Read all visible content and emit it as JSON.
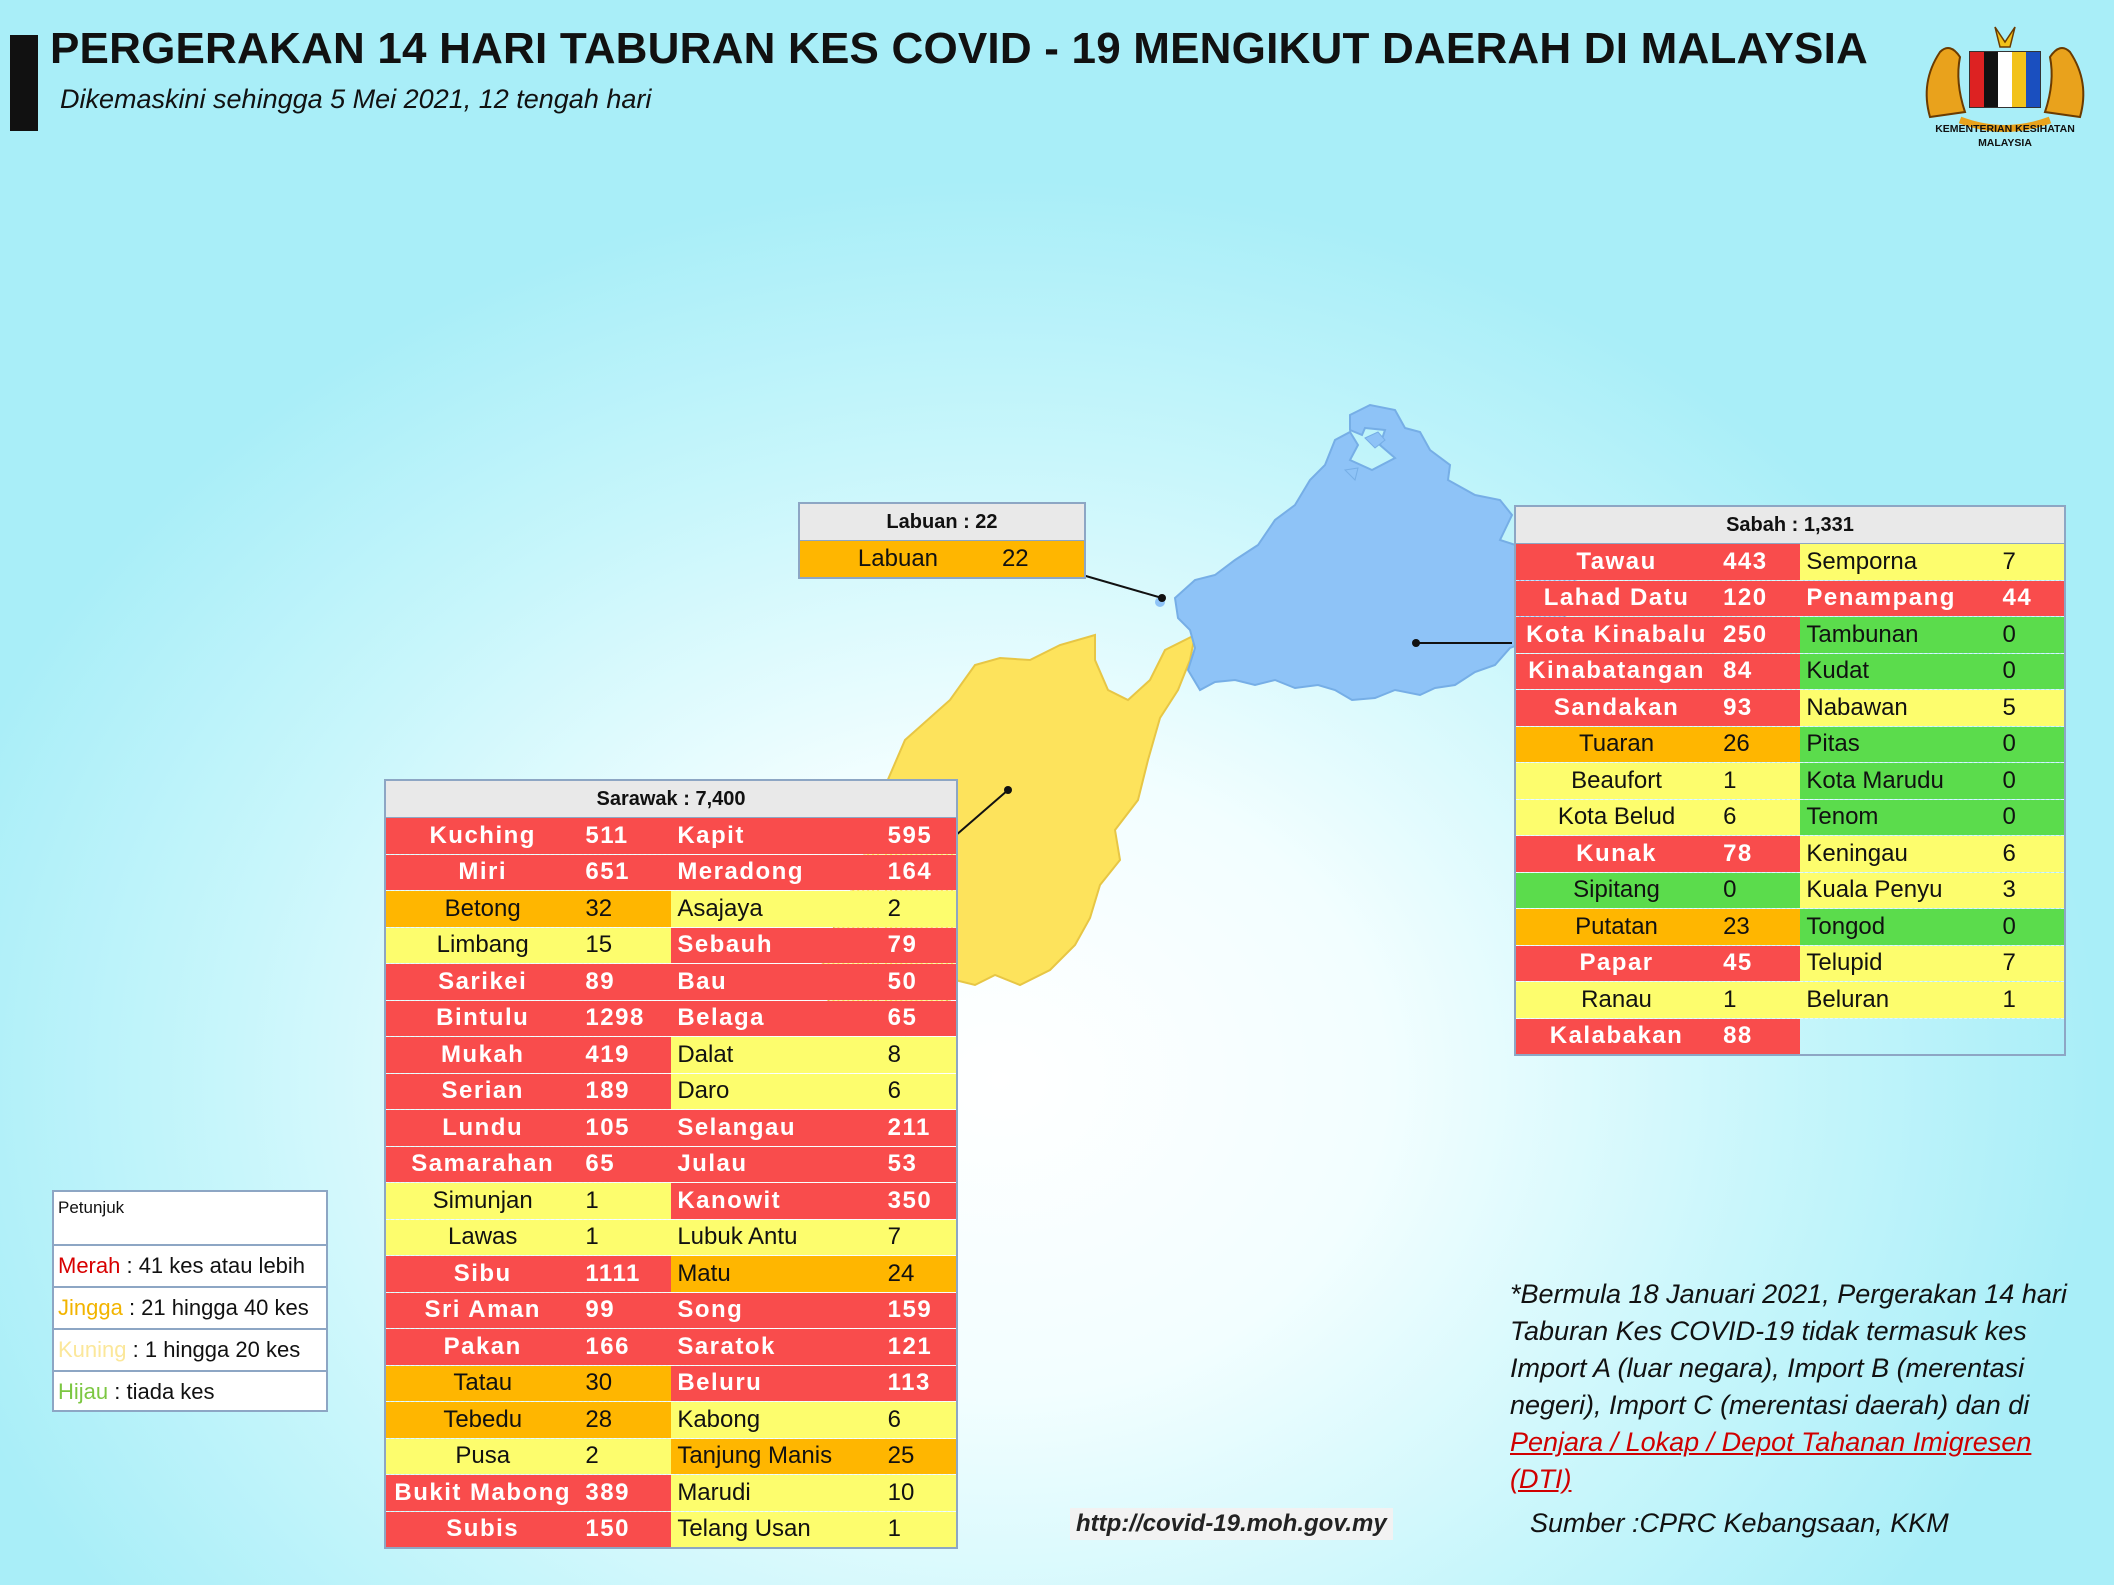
{
  "header": {
    "title": "PERGERAKAN 14 HARI TABURAN KES COVID - 19 MENGIKUT DAERAH DI MALAYSIA",
    "subtitle": "Dikemaskini sehingga 5 Mei 2021, 12 tengah hari",
    "logo_caption_1": "KEMENTERIAN KESIHATAN",
    "logo_caption_2": "MALAYSIA"
  },
  "colors": {
    "merah": "#f94c4c",
    "jingga": "#ffb600",
    "kuning": "#fdfd6d",
    "hijau": "#5bdc4c",
    "sabah_map": "#8ec3f7",
    "sarawak_map": "#fde35c"
  },
  "labuan": {
    "title": "Labuan : 22",
    "rows": [
      {
        "name": "Labuan",
        "value": "22",
        "level": "o"
      }
    ]
  },
  "sabah": {
    "title": "Sabah : 1,331",
    "rows": [
      [
        {
          "name": "Tawau",
          "value": "443",
          "level": "r"
        },
        {
          "name": "Semporna",
          "value": "7",
          "level": "y"
        }
      ],
      [
        {
          "name": "Lahad Datu",
          "value": "120",
          "level": "r"
        },
        {
          "name": "Penampang",
          "value": "44",
          "level": "r"
        }
      ],
      [
        {
          "name": "Kota Kinabalu",
          "value": "250",
          "level": "r"
        },
        {
          "name": "Tambunan",
          "value": "0",
          "level": "g"
        }
      ],
      [
        {
          "name": "Kinabatangan",
          "value": "84",
          "level": "r"
        },
        {
          "name": "Kudat",
          "value": "0",
          "level": "g"
        }
      ],
      [
        {
          "name": "Sandakan",
          "value": "93",
          "level": "r"
        },
        {
          "name": "Nabawan",
          "value": "5",
          "level": "y"
        }
      ],
      [
        {
          "name": "Tuaran",
          "value": "26",
          "level": "o"
        },
        {
          "name": "Pitas",
          "value": "0",
          "level": "g"
        }
      ],
      [
        {
          "name": "Beaufort",
          "value": "1",
          "level": "y"
        },
        {
          "name": "Kota Marudu",
          "value": "0",
          "level": "g"
        }
      ],
      [
        {
          "name": "Kota Belud",
          "value": "6",
          "level": "y"
        },
        {
          "name": "Tenom",
          "value": "0",
          "level": "g"
        }
      ],
      [
        {
          "name": "Kunak",
          "value": "78",
          "level": "r"
        },
        {
          "name": "Keningau",
          "value": "6",
          "level": "y"
        }
      ],
      [
        {
          "name": "Sipitang",
          "value": "0",
          "level": "g"
        },
        {
          "name": "Kuala Penyu",
          "value": "3",
          "level": "y"
        }
      ],
      [
        {
          "name": "Putatan",
          "value": "23",
          "level": "o"
        },
        {
          "name": "Tongod",
          "value": "0",
          "level": "g"
        }
      ],
      [
        {
          "name": "Papar",
          "value": "45",
          "level": "r"
        },
        {
          "name": "Telupid",
          "value": "7",
          "level": "y"
        }
      ],
      [
        {
          "name": "Ranau",
          "value": "1",
          "level": "y"
        },
        {
          "name": "Beluran",
          "value": "1",
          "level": "y"
        }
      ],
      [
        {
          "name": "Kalabakan",
          "value": "88",
          "level": "r"
        },
        {
          "name": "",
          "value": "",
          "level": "e"
        }
      ]
    ]
  },
  "sarawak": {
    "title": "Sarawak : 7,400",
    "rows": [
      [
        {
          "name": "Kuching",
          "value": "511",
          "level": "r"
        },
        {
          "name": "Kapit",
          "value": "595",
          "level": "r"
        }
      ],
      [
        {
          "name": "Miri",
          "value": "651",
          "level": "r"
        },
        {
          "name": "Meradong",
          "value": "164",
          "level": "r"
        }
      ],
      [
        {
          "name": "Betong",
          "value": "32",
          "level": "o"
        },
        {
          "name": "Asajaya",
          "value": "2",
          "level": "y"
        }
      ],
      [
        {
          "name": "Limbang",
          "value": "15",
          "level": "y"
        },
        {
          "name": "Sebauh",
          "value": "79",
          "level": "r"
        }
      ],
      [
        {
          "name": "Sarikei",
          "value": "89",
          "level": "r"
        },
        {
          "name": "Bau",
          "value": "50",
          "level": "r"
        }
      ],
      [
        {
          "name": "Bintulu",
          "value": "1298",
          "level": "r"
        },
        {
          "name": "Belaga",
          "value": "65",
          "level": "r"
        }
      ],
      [
        {
          "name": "Mukah",
          "value": "419",
          "level": "r"
        },
        {
          "name": "Dalat",
          "value": "8",
          "level": "y"
        }
      ],
      [
        {
          "name": "Serian",
          "value": "189",
          "level": "r"
        },
        {
          "name": "Daro",
          "value": "6",
          "level": "y"
        }
      ],
      [
        {
          "name": "Lundu",
          "value": "105",
          "level": "r"
        },
        {
          "name": "Selangau",
          "value": "211",
          "level": "r"
        }
      ],
      [
        {
          "name": "Samarahan",
          "value": "65",
          "level": "r"
        },
        {
          "name": "Julau",
          "value": "53",
          "level": "r"
        }
      ],
      [
        {
          "name": "Simunjan",
          "value": "1",
          "level": "y"
        },
        {
          "name": "Kanowit",
          "value": "350",
          "level": "r"
        }
      ],
      [
        {
          "name": "Lawas",
          "value": "1",
          "level": "y"
        },
        {
          "name": "Lubuk Antu",
          "value": "7",
          "level": "y"
        }
      ],
      [
        {
          "name": "Sibu",
          "value": "1111",
          "level": "r"
        },
        {
          "name": "Matu",
          "value": "24",
          "level": "o"
        }
      ],
      [
        {
          "name": "Sri Aman",
          "value": "99",
          "level": "r"
        },
        {
          "name": "Song",
          "value": "159",
          "level": "r"
        }
      ],
      [
        {
          "name": "Pakan",
          "value": "166",
          "level": "r"
        },
        {
          "name": "Saratok",
          "value": "121",
          "level": "r"
        }
      ],
      [
        {
          "name": "Tatau",
          "value": "30",
          "level": "o"
        },
        {
          "name": "Beluru",
          "value": "113",
          "level": "r"
        }
      ],
      [
        {
          "name": "Tebedu",
          "value": "28",
          "level": "o"
        },
        {
          "name": "Kabong",
          "value": "6",
          "level": "y"
        }
      ],
      [
        {
          "name": "Pusa",
          "value": "2",
          "level": "y"
        },
        {
          "name": "Tanjung Manis",
          "value": "25",
          "level": "o"
        }
      ],
      [
        {
          "name": "Bukit Mabong",
          "value": "389",
          "level": "r"
        },
        {
          "name": "Marudi",
          "value": "10",
          "level": "y"
        }
      ],
      [
        {
          "name": "Subis",
          "value": "150",
          "level": "r"
        },
        {
          "name": "Telang Usan",
          "value": "1",
          "level": "y"
        }
      ]
    ]
  },
  "legend": {
    "title": "Petunjuk",
    "items": [
      {
        "key": "Merah",
        "desc": " : 41 kes atau lebih",
        "color": "#d80000"
      },
      {
        "key": "Jingga",
        "desc": " : 21 hingga 40 kes",
        "color": "#f2b400"
      },
      {
        "key": "Kuning",
        "desc": " : 1 hingga 20 kes",
        "color": "#fbe79a"
      },
      {
        "key": "Hijau",
        "desc": " : tiada kes",
        "color": "#7cc742"
      }
    ]
  },
  "note": {
    "text": "*Bermula 18 Januari 2021, Pergerakan 14 hari Taburan Kes COVID-19 tidak termasuk kes Import A (luar negara), Import B (merentasi negeri), Import C (merentasi daerah) dan di ",
    "link": "Penjara / Lokap / Depot Tahanan Imigresen (DTI)"
  },
  "source": "Sumber :CPRC Kebangsaan,  KKM",
  "url": "http://covid-19.moh.gov.my"
}
